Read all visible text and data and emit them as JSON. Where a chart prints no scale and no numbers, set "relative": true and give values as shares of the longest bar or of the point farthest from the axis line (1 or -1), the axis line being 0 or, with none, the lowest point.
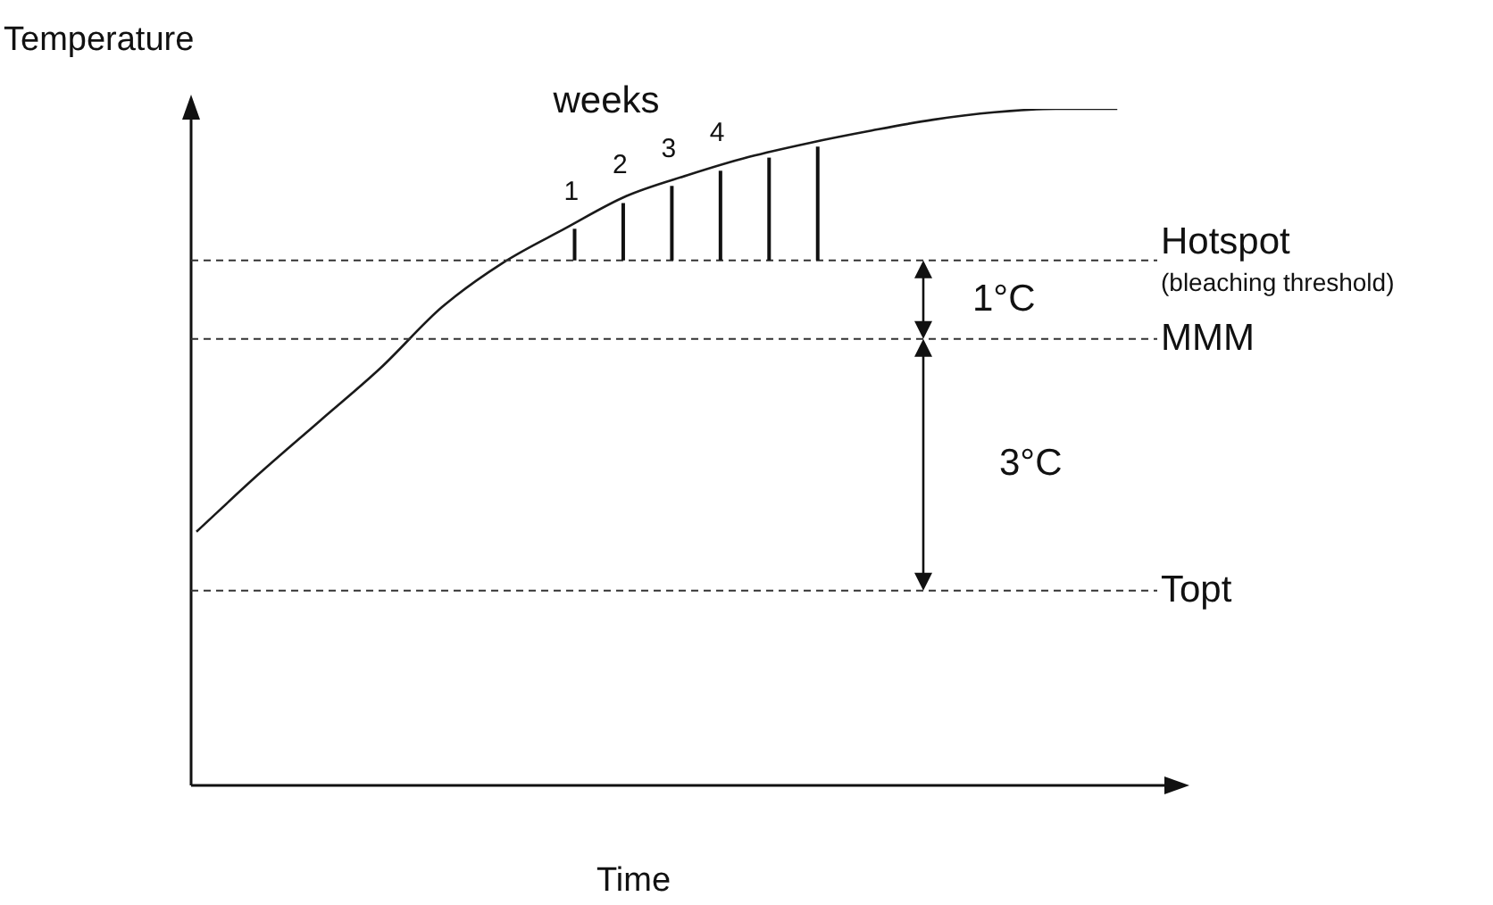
{
  "chart_data": {
    "type": "line",
    "relative": true,
    "xlabel": "Time",
    "ylabel": "Temperature",
    "categories": [
      null,
      null,
      null,
      null,
      null,
      null,
      null,
      null,
      null,
      null,
      null,
      null,
      null,
      null,
      null,
      null,
      null
    ],
    "series": [
      {
        "color": "#1a1a1a",
        "values": [
          0.375,
          0.459,
          0.538,
          0.617,
          0.707,
          0.773,
          0.823,
          0.871,
          0.902,
          0.929,
          0.95,
          0.968,
          0.984,
          0.995,
          1,
          1,
          null
        ]
      }
    ],
    "ref_lines": [
      {
        "axis": "y",
        "value": 0.776,
        "label": "Hotspot",
        "line_style": "dashed",
        "color": "#333333"
      },
      {
        "axis": "y",
        "value": 0.66,
        "label": "MMM",
        "line_style": "dashed",
        "color": "#333333"
      },
      {
        "axis": "y",
        "value": 0.288,
        "label": "Topt",
        "line_style": "dashed",
        "color": "#333333"
      }
    ],
    "annotations": [
      "weeks",
      "1",
      "2",
      "3",
      "4",
      "1°C",
      "3°C",
      "(bleaching threshold)"
    ],
    "legend": false,
    "marker": "none",
    "line_style": "solid"
  }
}
